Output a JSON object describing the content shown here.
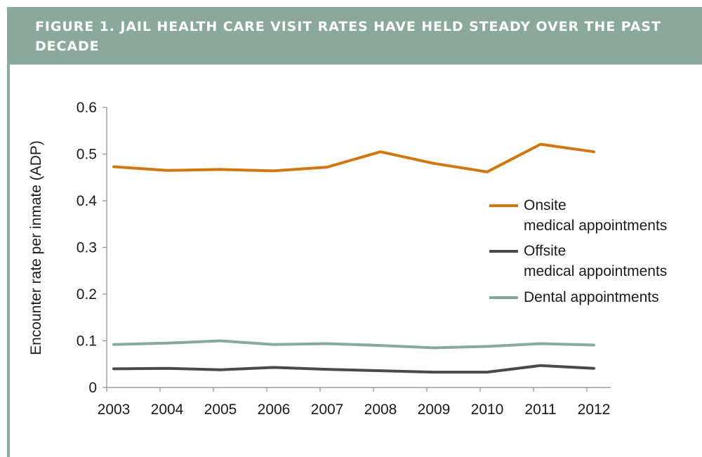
{
  "figure": {
    "title": "FIGURE 1. JAIL HEALTH CARE VISIT RATES HAVE HELD STEADY OVER THE PAST DECADE",
    "header_color": "#8aa89c"
  },
  "chart_data": {
    "type": "line",
    "x": [
      "2003",
      "2004",
      "2005",
      "2006",
      "2007",
      "2008",
      "2009",
      "2010",
      "2011",
      "2012"
    ],
    "ylabel": "Encounter rate per inmate (ADP)",
    "xlabel": "",
    "ylim": [
      0,
      0.6
    ],
    "yticks": [
      "0",
      "0.1",
      "0.2",
      "0.3",
      "0.4",
      "0.5",
      "0.6"
    ],
    "grid": false,
    "legend_position": "right",
    "series": [
      {
        "name": "Onsite medical appointments",
        "legend_lines": [
          "Onsite",
          "medical appointments"
        ],
        "color": "#d0780f",
        "values": [
          0.473,
          0.465,
          0.467,
          0.464,
          0.472,
          0.505,
          0.48,
          0.462,
          0.521,
          0.505
        ]
      },
      {
        "name": "Offsite medical appointments",
        "legend_lines": [
          "Offsite",
          "medical appointments"
        ],
        "color": "#4a4a4a",
        "values": [
          0.04,
          0.041,
          0.038,
          0.043,
          0.039,
          0.036,
          0.033,
          0.033,
          0.047,
          0.041
        ]
      },
      {
        "name": "Dental appointments",
        "legend_lines": [
          "Dental appointments"
        ],
        "color": "#8aa89c",
        "values": [
          0.092,
          0.095,
          0.1,
          0.092,
          0.094,
          0.09,
          0.085,
          0.088,
          0.094,
          0.091
        ]
      }
    ]
  }
}
